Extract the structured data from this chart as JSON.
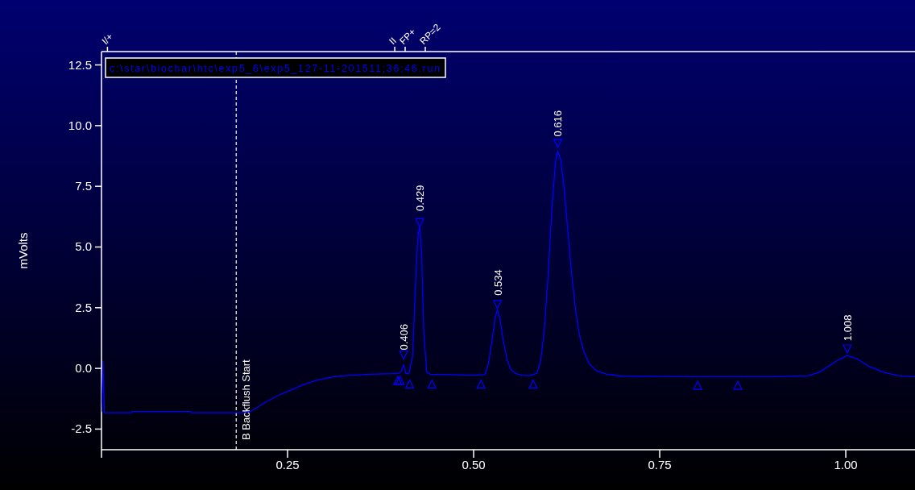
{
  "chart_data": {
    "type": "line",
    "ylabel": "mVolts",
    "xlim": [
      0,
      1.093
    ],
    "ylim": [
      -3.35,
      13.05
    ],
    "xticks": [
      {
        "value": 0,
        "label": null
      },
      {
        "value": 0.25,
        "label": "0.25"
      },
      {
        "value": 0.5,
        "label": "0.50"
      },
      {
        "value": 0.75,
        "label": "0.75"
      },
      {
        "value": 1,
        "label": "1.00"
      }
    ],
    "yticks": [
      {
        "value": -2.5,
        "label": "-2.5"
      },
      {
        "value": 0,
        "label": "0.0"
      },
      {
        "value": 2.5,
        "label": "2.5"
      },
      {
        "value": 5,
        "label": "5.0"
      },
      {
        "value": 7.5,
        "label": "7.5"
      },
      {
        "value": 10,
        "label": "10.0"
      },
      {
        "value": 12.5,
        "label": "12.5"
      }
    ],
    "grid": false,
    "series": [
      {
        "color": "#0000ff",
        "x": [
          0,
          0.002,
          0.003,
          0.004,
          0.04,
          0.041,
          0.12,
          0.121,
          0.19,
          0.2,
          0.21,
          0.22,
          0.235,
          0.25,
          0.27,
          0.29,
          0.31,
          0.33,
          0.36,
          0.39,
          0.4,
          0.403,
          0.406,
          0.409,
          0.413,
          0.418,
          0.422,
          0.425,
          0.4275,
          0.43,
          0.433,
          0.437,
          0.442,
          0.46,
          0.5,
          0.515,
          0.52,
          0.525,
          0.529,
          0.532,
          0.535,
          0.54,
          0.545,
          0.55,
          0.557,
          0.565,
          0.575,
          0.585,
          0.59,
          0.595,
          0.6,
          0.605,
          0.61,
          0.613,
          0.617,
          0.622,
          0.627,
          0.632,
          0.637,
          0.642,
          0.648,
          0.655,
          0.665,
          0.68,
          0.7,
          0.75,
          0.8,
          0.85,
          0.9,
          0.95,
          0.965,
          0.98,
          0.99,
          1.002,
          1.015,
          1.03,
          1.05,
          1.07,
          1.093
        ],
        "values": [
          -1.8,
          0.3,
          -1.0,
          -1.83,
          -1.83,
          -1.78,
          -1.78,
          -1.83,
          -1.83,
          -1.78,
          -1.6,
          -1.4,
          -1.15,
          -0.95,
          -0.68,
          -0.48,
          -0.36,
          -0.29,
          -0.24,
          -0.22,
          -0.2,
          -0.1,
          0.15,
          -0.22,
          -0.22,
          0.5,
          3.5,
          5.4,
          5.88,
          4.8,
          1.5,
          -0.15,
          -0.25,
          -0.25,
          -0.28,
          -0.26,
          0.2,
          1.2,
          2.1,
          2.4,
          2.1,
          1.1,
          0.35,
          -0.05,
          -0.22,
          -0.28,
          -0.3,
          -0.2,
          0.3,
          1.6,
          3.8,
          6.5,
          8.5,
          8.95,
          8.6,
          7.3,
          5.5,
          3.8,
          2.4,
          1.4,
          0.7,
          0.2,
          -0.1,
          -0.25,
          -0.32,
          -0.33,
          -0.35,
          -0.35,
          -0.35,
          -0.3,
          -0.15,
          0.15,
          0.35,
          0.53,
          0.4,
          0.1,
          -0.15,
          -0.3,
          -0.35
        ]
      },
      {
        "type": "scatter",
        "marker": "triangle",
        "color": "#0000ff",
        "x": [
          0.398,
          0.401,
          0.414,
          0.444,
          0.51,
          0.58,
          0.801,
          0.855
        ],
        "values": [
          -0.5,
          -0.5,
          -0.65,
          -0.65,
          -0.65,
          -0.65,
          -0.7,
          -0.7
        ]
      },
      {
        "type": "scatter",
        "marker": "triangle",
        "color": "#0000ff",
        "x": [
          0.406,
          0.4275,
          0.532,
          0.613,
          1.002
        ],
        "values": [
          0.55,
          6.0,
          2.63,
          9.27,
          0.8
        ]
      }
    ],
    "ref_lines": [
      {
        "axis": "x",
        "value": 0.181,
        "label": "B Backflush Start",
        "color": "#ffffff",
        "line_style": "dashed"
      },
      {
        "axis": "x",
        "value": 0.008,
        "label": "I/+"
      },
      {
        "axis": "x",
        "value": 0.394,
        "label": "II"
      },
      {
        "axis": "x",
        "value": 0.408,
        "label": "FP+"
      }
    ],
    "annotations": [
      "c:\\star\\biochar\\htc\\exp5_6\\exp5_127-11-201511;36;46.run",
      "RP=2",
      {
        "text": "0.406",
        "x": 0.406,
        "y": 0.15
      },
      {
        "text": "0.429",
        "x": 0.4275,
        "y": 5.88
      },
      {
        "text": "0.534",
        "x": 0.532,
        "y": 2.4
      },
      {
        "text": "0.616",
        "x": 0.613,
        "y": 8.95
      },
      {
        "text": "1.008",
        "x": 1.002,
        "y": 0.53
      }
    ]
  }
}
